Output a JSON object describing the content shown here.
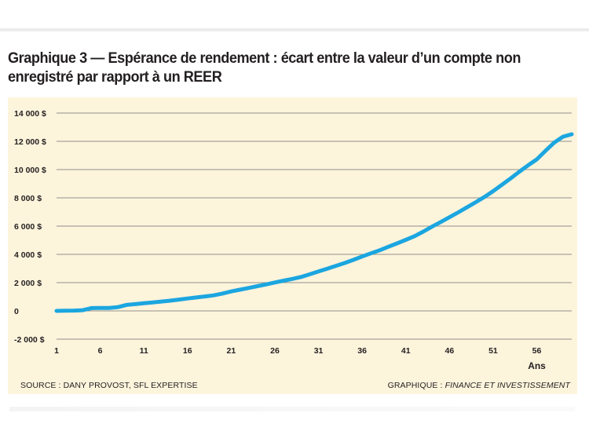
{
  "chart_data": {
    "type": "line",
    "title": "Graphique 3 — Espérance de rendement : écart entre la valeur d’un compte non enregistré par rapport à un REER",
    "title_line1": "Graphique 3 — Espérance de rendement : écart entre la valeur d’un compte non",
    "title_line2": "enregistré par rapport à un REER",
    "xlabel": "Ans",
    "ylabel": "",
    "x_ticks": [
      1,
      6,
      11,
      16,
      21,
      26,
      31,
      36,
      41,
      46,
      51,
      56
    ],
    "x_tick_labels": [
      "1",
      "6",
      "11",
      "16",
      "21",
      "26",
      "31",
      "36",
      "41",
      "46",
      "51",
      "56"
    ],
    "y_ticks": [
      -2000,
      0,
      2000,
      4000,
      6000,
      8000,
      10000,
      12000,
      14000
    ],
    "y_tick_labels": [
      "-2 000 $",
      "0",
      "2 000 $",
      "4 000 $",
      "6 000 $",
      "8 000 $",
      "10 000 $",
      "12 000 $",
      "14 000 $"
    ],
    "xlim": [
      1,
      60
    ],
    "ylim": [
      -2000,
      14000
    ],
    "grid": "horizontal",
    "series": [
      {
        "x": [
          1,
          2,
          3,
          4,
          5,
          6,
          7,
          8,
          9,
          10,
          11,
          12,
          13,
          14,
          15,
          16,
          17,
          18,
          19,
          20,
          21,
          22,
          23,
          24,
          25,
          26,
          27,
          28,
          29,
          30,
          31,
          32,
          33,
          34,
          35,
          36,
          37,
          38,
          39,
          40,
          41,
          42,
          43,
          44,
          45,
          46,
          47,
          48,
          49,
          50,
          51,
          52,
          53,
          54,
          55,
          56,
          57,
          58,
          59,
          60
        ],
        "values": [
          0,
          10,
          20,
          50,
          200,
          210,
          210,
          260,
          420,
          480,
          540,
          600,
          660,
          720,
          800,
          880,
          950,
          1020,
          1100,
          1230,
          1380,
          1500,
          1620,
          1750,
          1870,
          2010,
          2140,
          2260,
          2400,
          2590,
          2790,
          2990,
          3190,
          3390,
          3610,
          3850,
          4070,
          4290,
          4540,
          4780,
          5030,
          5290,
          5610,
          5960,
          6290,
          6630,
          6970,
          7330,
          7690,
          8060,
          8470,
          8920,
          9380,
          9850,
          10300,
          10720,
          11330,
          11910,
          12330,
          12500
        ]
      }
    ],
    "colors": {
      "line": "#1ba6e0",
      "background": "#fdf4dc",
      "grid": "#6d6e71",
      "text": "#231f20"
    }
  },
  "footer": {
    "source": "SOURCE : DANY PROVOST, SFL EXPERTISE",
    "credit_prefix": "GRAPHIQUE : ",
    "credit_name": "FINANCE ET INVESTISSEMENT"
  }
}
